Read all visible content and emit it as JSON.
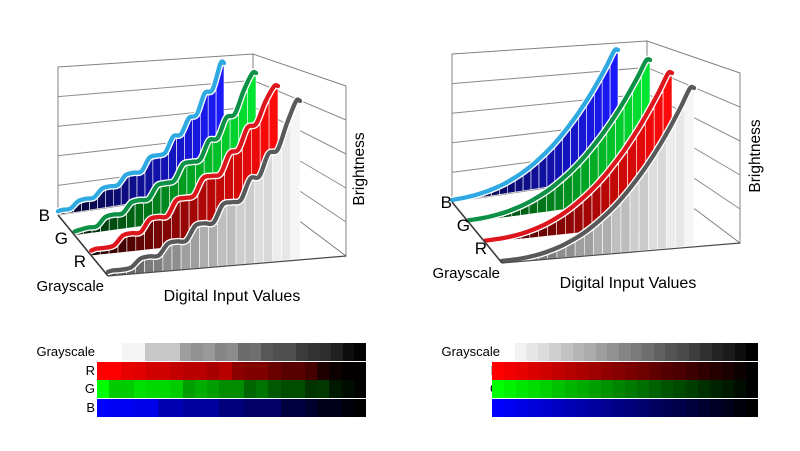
{
  "figure": {
    "background": "#ffffff",
    "labels": {
      "x_axis": "Digital Input Values",
      "y_axis": "Brightness",
      "b": "B",
      "g": "G",
      "r": "R",
      "grayscale": "Grayscale"
    },
    "colors": {
      "curve_blue": "#2FA9E1",
      "curve_green": "#0C9146",
      "curve_red": "#DD161E",
      "curve_gray": "#58595B",
      "bar_blue": "#1A1AFA",
      "bar_green": "#00E432",
      "bar_red": "#FF0A0A",
      "bar_gray": "#F5F5F5",
      "wall_stroke": "#808080",
      "grid_line": "#8C8C8C",
      "axis_line": "#3A3A3A"
    }
  },
  "chart_data": [
    {
      "id": "plot3d-uncalibrated",
      "type": "area",
      "projection": "3d-waterfall",
      "xlabel": "Digital Input Values",
      "zlabel": "Brightness",
      "categories_front_to_back": [
        "Grayscale",
        "R",
        "G",
        "B"
      ],
      "n_input_steps": 21,
      "value_range": [
        0,
        1
      ],
      "grid": true,
      "series": [
        {
          "name": "B",
          "values": [
            0.02,
            0.02,
            0.07,
            0.08,
            0.08,
            0.14,
            0.15,
            0.15,
            0.22,
            0.23,
            0.23,
            0.33,
            0.34,
            0.35,
            0.47,
            0.48,
            0.6,
            0.62,
            0.78,
            0.8,
            1.0
          ]
        },
        {
          "name": "G",
          "values": [
            0.02,
            0.03,
            0.03,
            0.09,
            0.1,
            0.1,
            0.17,
            0.18,
            0.18,
            0.27,
            0.28,
            0.29,
            0.4,
            0.41,
            0.42,
            0.55,
            0.56,
            0.7,
            0.72,
            0.88,
            1.0
          ]
        },
        {
          "name": "R",
          "values": [
            0.03,
            0.03,
            0.04,
            0.1,
            0.11,
            0.11,
            0.19,
            0.2,
            0.2,
            0.3,
            0.31,
            0.32,
            0.43,
            0.44,
            0.45,
            0.58,
            0.6,
            0.74,
            0.76,
            0.9,
            1.0
          ]
        },
        {
          "name": "Grayscale",
          "values": [
            0.02,
            0.02,
            0.03,
            0.08,
            0.09,
            0.09,
            0.16,
            0.17,
            0.17,
            0.26,
            0.27,
            0.27,
            0.38,
            0.39,
            0.4,
            0.53,
            0.54,
            0.68,
            0.7,
            0.86,
            1.0
          ]
        }
      ]
    },
    {
      "id": "plot3d-calibrated",
      "type": "area",
      "projection": "3d-waterfall",
      "xlabel": "Digital Input Values",
      "zlabel": "Brightness",
      "categories_front_to_back": [
        "Grayscale",
        "R",
        "G",
        "B"
      ],
      "n_input_steps": 21,
      "value_range": [
        0,
        1
      ],
      "grid": true,
      "gamma": 2.5,
      "series": [
        {
          "name": "B",
          "values": [
            0.001,
            0.003,
            0.008,
            0.016,
            0.028,
            0.044,
            0.064,
            0.09,
            0.12,
            0.156,
            0.199,
            0.247,
            0.301,
            0.363,
            0.432,
            0.507,
            0.59,
            0.68,
            0.779,
            0.885,
            1.0
          ]
        },
        {
          "name": "G",
          "values": [
            0.001,
            0.003,
            0.008,
            0.016,
            0.028,
            0.044,
            0.064,
            0.09,
            0.12,
            0.156,
            0.199,
            0.247,
            0.301,
            0.363,
            0.432,
            0.507,
            0.59,
            0.68,
            0.779,
            0.885,
            1.0
          ]
        },
        {
          "name": "R",
          "values": [
            0.001,
            0.003,
            0.008,
            0.016,
            0.028,
            0.044,
            0.064,
            0.09,
            0.12,
            0.156,
            0.199,
            0.247,
            0.301,
            0.363,
            0.432,
            0.507,
            0.59,
            0.68,
            0.779,
            0.885,
            1.0
          ]
        },
        {
          "name": "Grayscale",
          "values": [
            0.001,
            0.003,
            0.008,
            0.016,
            0.028,
            0.044,
            0.064,
            0.09,
            0.12,
            0.156,
            0.199,
            0.247,
            0.301,
            0.363,
            0.432,
            0.507,
            0.59,
            0.68,
            0.779,
            0.885,
            1.0
          ]
        }
      ]
    },
    {
      "id": "colorbars-uncalibrated",
      "type": "heatmap",
      "rows": [
        {
          "name": "Grayscale",
          "channel": "gray",
          "levels": [
            1.0,
            0.96,
            0.96,
            0.78,
            0.78,
            0.78,
            0.62,
            0.57,
            0.6,
            0.52,
            0.55,
            0.42,
            0.44,
            0.34,
            0.31,
            0.31,
            0.23,
            0.2,
            0.18,
            0.13,
            0.05,
            0.01
          ]
        },
        {
          "name": "R",
          "channel": "red",
          "levels": [
            1.0,
            1.0,
            0.9,
            0.88,
            0.82,
            0.82,
            0.76,
            0.72,
            0.72,
            0.66,
            0.72,
            0.55,
            0.5,
            0.5,
            0.42,
            0.35,
            0.35,
            0.28,
            0.12,
            0.05,
            0.02,
            0.01
          ]
        },
        {
          "name": "G",
          "channel": "green",
          "levels": [
            1.0,
            0.8,
            0.8,
            0.88,
            0.85,
            0.85,
            0.8,
            0.62,
            0.68,
            0.62,
            0.55,
            0.55,
            0.4,
            0.45,
            0.35,
            0.3,
            0.3,
            0.2,
            0.22,
            0.1,
            0.05,
            0.01
          ]
        },
        {
          "name": "B",
          "channel": "blue",
          "levels": [
            1.0,
            0.95,
            0.95,
            0.92,
            0.92,
            0.7,
            0.7,
            0.62,
            0.62,
            0.62,
            0.48,
            0.48,
            0.4,
            0.4,
            0.4,
            0.25,
            0.25,
            0.18,
            0.1,
            0.1,
            0.04,
            0.01
          ]
        }
      ]
    },
    {
      "id": "colorbars-calibrated",
      "type": "heatmap",
      "rows": [
        {
          "name": "Grayscale",
          "channel": "gray",
          "levels": [
            1.0,
            0.95,
            0.9,
            0.86,
            0.81,
            0.76,
            0.71,
            0.67,
            0.62,
            0.57,
            0.52,
            0.48,
            0.43,
            0.38,
            0.33,
            0.29,
            0.24,
            0.19,
            0.14,
            0.1,
            0.05,
            0.0
          ]
        },
        {
          "name": "R",
          "channel": "red",
          "levels": [
            1.0,
            0.95,
            0.9,
            0.86,
            0.81,
            0.76,
            0.71,
            0.67,
            0.62,
            0.57,
            0.52,
            0.48,
            0.43,
            0.38,
            0.33,
            0.29,
            0.24,
            0.19,
            0.14,
            0.1,
            0.05,
            0.0
          ]
        },
        {
          "name": "G",
          "channel": "green",
          "levels": [
            1.0,
            0.95,
            0.9,
            0.86,
            0.81,
            0.76,
            0.71,
            0.67,
            0.62,
            0.57,
            0.52,
            0.48,
            0.43,
            0.38,
            0.33,
            0.29,
            0.24,
            0.19,
            0.14,
            0.1,
            0.05,
            0.0
          ]
        },
        {
          "name": "B",
          "channel": "blue",
          "levels": [
            1.0,
            0.95,
            0.9,
            0.86,
            0.81,
            0.76,
            0.71,
            0.67,
            0.62,
            0.57,
            0.52,
            0.48,
            0.43,
            0.38,
            0.33,
            0.29,
            0.24,
            0.19,
            0.14,
            0.1,
            0.05,
            0.0
          ]
        }
      ]
    }
  ]
}
